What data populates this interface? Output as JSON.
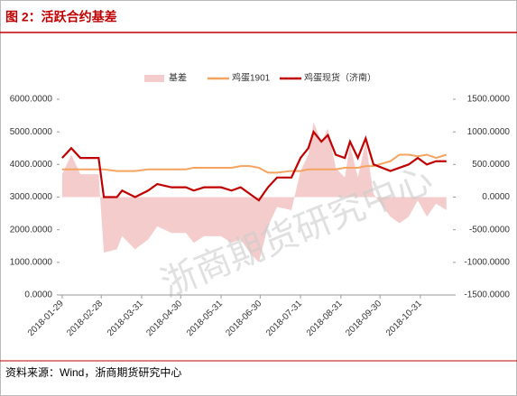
{
  "chart_data": {
    "type": "combo",
    "title": "图 2：活跃合约基差",
    "source": "资料来源：Wind，浙商期货研究中心",
    "watermark": "浙商期货研究中心",
    "x": [
      "2018-01-29",
      "2018-02-05",
      "2018-02-12",
      "2018-02-26",
      "2018-03-02",
      "2018-03-12",
      "2018-03-16",
      "2018-03-26",
      "2018-04-05",
      "2018-04-12",
      "2018-04-23",
      "2018-05-04",
      "2018-05-10",
      "2018-05-18",
      "2018-05-31",
      "2018-06-08",
      "2018-06-15",
      "2018-06-22",
      "2018-06-29",
      "2018-07-06",
      "2018-07-13",
      "2018-07-24",
      "2018-07-31",
      "2018-08-06",
      "2018-08-10",
      "2018-08-16",
      "2018-08-21",
      "2018-08-27",
      "2018-09-03",
      "2018-09-07",
      "2018-09-13",
      "2018-09-19",
      "2018-09-25",
      "2018-10-08",
      "2018-10-15",
      "2018-10-22",
      "2018-10-29",
      "2018-11-05",
      "2018-11-12",
      "2018-11-20"
    ],
    "xlim": [
      "2018-01-27",
      "2018-11-25"
    ],
    "xticks": [
      "2018-01-29",
      "2018-02-28",
      "2018-03-31",
      "2018-04-30",
      "2018-05-31",
      "2018-06-30",
      "2018-07-31",
      "2018-08-31",
      "2018-09-30",
      "2018-10-31"
    ],
    "ylim": [
      0,
      6000
    ],
    "yticks": [
      {
        "value": 0,
        "label": "0.0000"
      },
      {
        "value": 1000,
        "label": "1000.0000"
      },
      {
        "value": 2000,
        "label": "2000.0000"
      },
      {
        "value": 3000,
        "label": "3000.0000"
      },
      {
        "value": 4000,
        "label": "4000.0000"
      },
      {
        "value": 5000,
        "label": "5000.0000"
      },
      {
        "value": 6000,
        "label": "6000.0000"
      }
    ],
    "y2lim": [
      -1500,
      1500
    ],
    "y2ticks": [
      {
        "value": -1500,
        "label": "-1500.0000"
      },
      {
        "value": -1000,
        "label": "-1000.0000"
      },
      {
        "value": -500,
        "label": "-500.0000"
      },
      {
        "value": 0,
        "label": "0.0000"
      },
      {
        "value": 500,
        "label": "500.0000"
      },
      {
        "value": 1000,
        "label": "1000.0000"
      },
      {
        "value": 1500,
        "label": "1500.0000"
      }
    ],
    "series": [
      {
        "name": "基差",
        "kind": "area",
        "axis": "y2",
        "color": "#f4cccc",
        "values": [
          350,
          650,
          350,
          350,
          -850,
          -800,
          -600,
          -800,
          -650,
          -450,
          -550,
          -550,
          -700,
          -600,
          -600,
          -700,
          -650,
          -850,
          -1000,
          -450,
          -150,
          -200,
          400,
          650,
          1150,
          850,
          1050,
          450,
          300,
          800,
          300,
          850,
          50,
          -300,
          -400,
          -300,
          -50,
          -300,
          -100,
          -200
        ]
      },
      {
        "name": "鸡蛋1901",
        "kind": "line",
        "axis": "y",
        "color": "#f4a460",
        "values": [
          3850,
          3850,
          3850,
          3850,
          3850,
          3800,
          3800,
          3800,
          3850,
          3850,
          3850,
          3850,
          3900,
          3900,
          3900,
          3900,
          3950,
          3950,
          3900,
          3750,
          3750,
          3800,
          3800,
          3850,
          3850,
          3850,
          3850,
          3850,
          3900,
          3900,
          3900,
          3950,
          3950,
          4100,
          4300,
          4300,
          4250,
          4300,
          4200,
          4300
        ]
      },
      {
        "name": "鸡蛋现货（济南）",
        "kind": "line",
        "axis": "y",
        "color": "#c00000",
        "values": [
          4200,
          4500,
          4200,
          4200,
          3000,
          3000,
          3200,
          3000,
          3200,
          3400,
          3300,
          3300,
          3200,
          3300,
          3300,
          3200,
          3300,
          3100,
          2900,
          3300,
          3600,
          3600,
          4200,
          4500,
          5000,
          4700,
          4900,
          4300,
          4200,
          4700,
          4200,
          4800,
          4000,
          3800,
          3900,
          4000,
          4200,
          4000,
          4100,
          4100
        ]
      }
    ]
  }
}
